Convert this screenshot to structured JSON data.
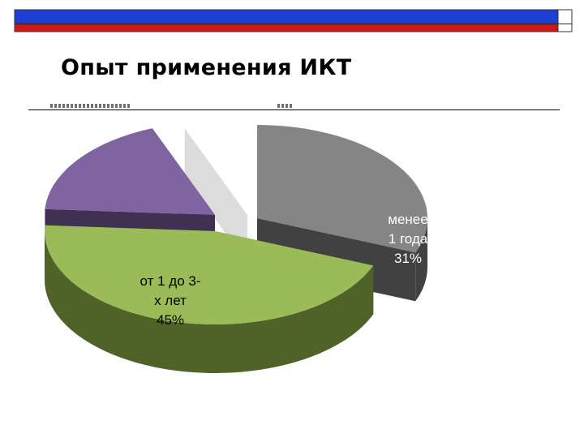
{
  "slide": {
    "title": "Опыт применения ИКТ",
    "colors": {
      "bar_blue": "#1e3fd6",
      "bar_red": "#d61414"
    }
  },
  "chart_data": {
    "type": "pie",
    "style": "3d-exploded",
    "title": "",
    "slices": [
      {
        "label_lines": [
          "менее",
          "1 года",
          "31%"
        ],
        "value": 31,
        "color": "#858585",
        "side_color": "#414141",
        "label_color": "#ffffff"
      },
      {
        "label_lines": [
          "от 1 до 3-",
          "х лет",
          "45%"
        ],
        "value": 45,
        "color": "#9bbb59",
        "side_color": "#4f6228",
        "label_color": "#000000"
      },
      {
        "label_lines": [],
        "value": 18,
        "color": "#8064a2",
        "side_color": "#403152",
        "label_color": "#ffffff"
      },
      {
        "label_lines": [],
        "value": 6,
        "color": "#ffffff",
        "side_color": "#dcdcdc",
        "label_color": "#ffffff"
      }
    ],
    "legend": "none"
  }
}
